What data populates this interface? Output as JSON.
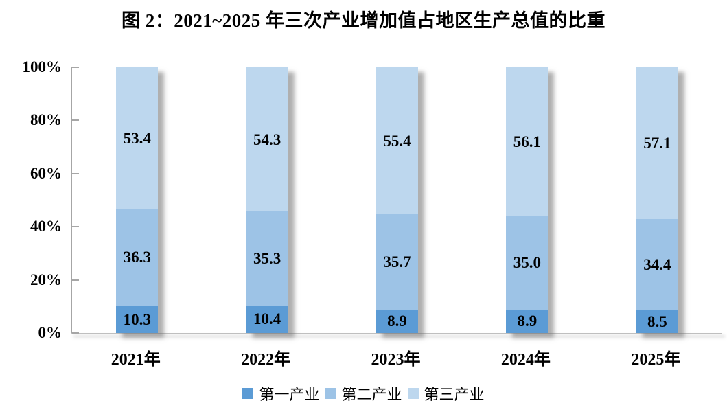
{
  "chart_data": {
    "type": "bar",
    "stacked": true,
    "title": "图 2：2021~2025 年三次产业增加值占地区生产总值的比重",
    "categories": [
      "2021年",
      "2022年",
      "2023年",
      "2024年",
      "2025年"
    ],
    "series": [
      {
        "name": "第一产业",
        "color": "#5b9bd5",
        "values": [
          10.3,
          10.4,
          8.9,
          8.9,
          8.5
        ],
        "labels": [
          "10.3",
          "10.4",
          "8.9",
          "8.9",
          "8.5"
        ]
      },
      {
        "name": "第二产业",
        "color": "#9dc3e6",
        "values": [
          36.3,
          35.3,
          35.7,
          35.0,
          34.4
        ],
        "labels": [
          "36.3",
          "35.3",
          "35.7",
          "35.0",
          "34.4"
        ]
      },
      {
        "name": "第三产业",
        "color": "#bdd7ee",
        "values": [
          53.4,
          54.3,
          55.4,
          56.1,
          57.1
        ],
        "labels": [
          "53.4",
          "54.3",
          "55.4",
          "56.1",
          "57.1"
        ]
      }
    ],
    "y_ticks_top_to_bottom": [
      "100%",
      "80%",
      "60%",
      "40%",
      "20%",
      "0%"
    ],
    "ylim": [
      0,
      100
    ],
    "grid": false,
    "legend_position": "bottom",
    "axis_color": "#a6a6a6",
    "baseline_color": "#bfbfbf"
  }
}
